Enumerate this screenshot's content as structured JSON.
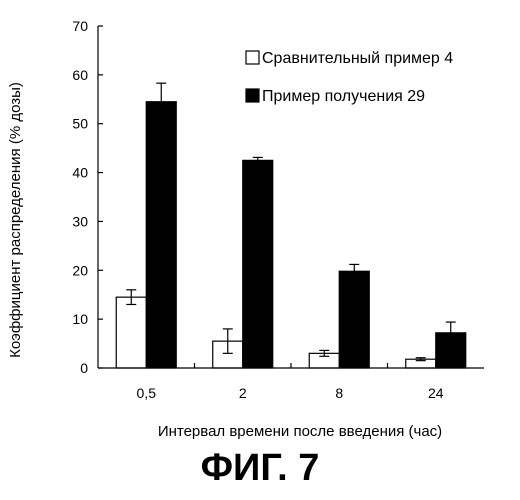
{
  "chart_data": {
    "type": "bar",
    "title": "",
    "categories": [
      "0,5",
      "2",
      "8",
      "24"
    ],
    "series": [
      {
        "name": "Сравнительный пример 4",
        "values": [
          14.5,
          5.5,
          3.0,
          1.8
        ],
        "errors": [
          1.5,
          2.5,
          0.6,
          0.3
        ],
        "fill": "#ffffff"
      },
      {
        "name": "Пример получения 29",
        "values": [
          54.5,
          42.5,
          19.8,
          7.2
        ],
        "errors": [
          3.8,
          0.6,
          1.4,
          2.2
        ],
        "fill": "#000000"
      }
    ],
    "xlabel": "Интервал времени после введения (час)",
    "ylabel": "Коэффициент распределения (% дозы)",
    "ylim": [
      0,
      70
    ],
    "yticks": [
      "0",
      "10",
      "20",
      "30",
      "40",
      "50",
      "60",
      "70"
    ],
    "grid": false,
    "legend_position": "top-right"
  },
  "figure": {
    "caption": "ФИГ. 7"
  }
}
